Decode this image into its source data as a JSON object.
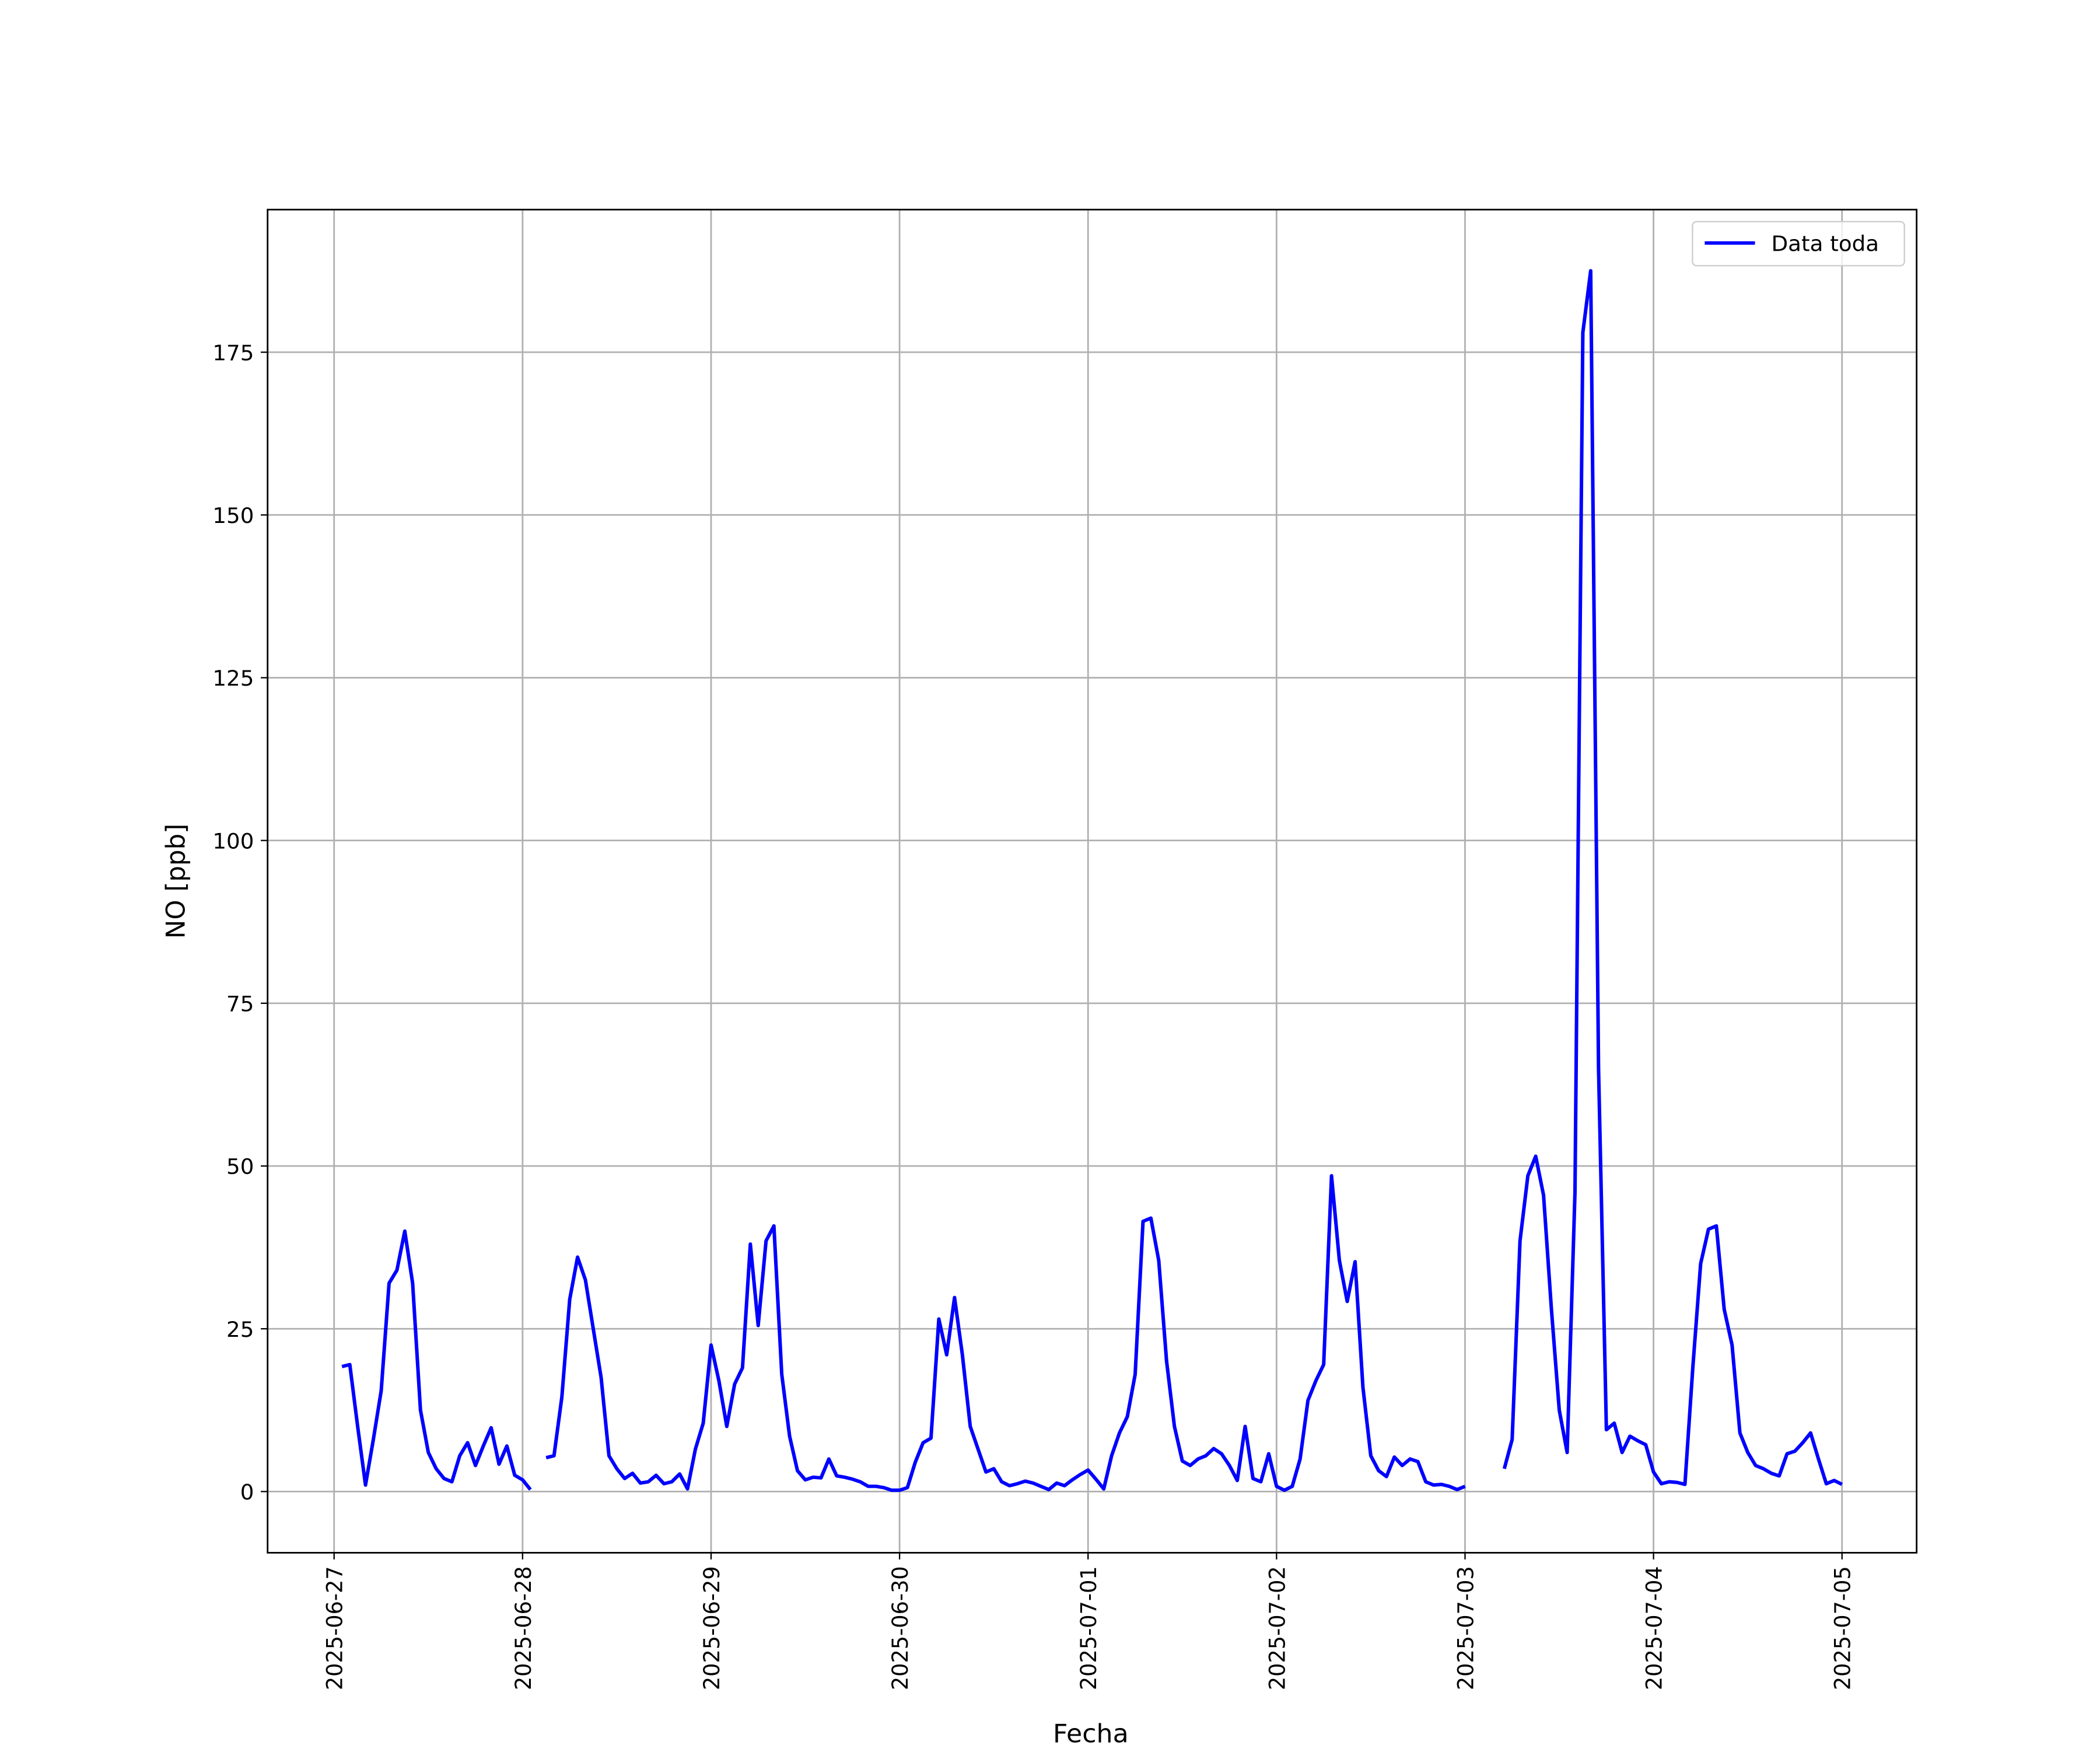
{
  "chart_data": {
    "type": "line",
    "xlabel": "Fecha",
    "ylabel": "NO [ppb]",
    "x": [
      "2025-06-27T01:00",
      "2025-06-27T02:00",
      "2025-06-27T03:00",
      "2025-06-27T04:00",
      "2025-06-27T05:00",
      "2025-06-27T06:00",
      "2025-06-27T07:00",
      "2025-06-27T08:00",
      "2025-06-27T09:00",
      "2025-06-27T10:00",
      "2025-06-27T11:00",
      "2025-06-27T12:00",
      "2025-06-27T13:00",
      "2025-06-27T14:00",
      "2025-06-27T15:00",
      "2025-06-27T16:00",
      "2025-06-27T17:00",
      "2025-06-27T18:00",
      "2025-06-27T19:00",
      "2025-06-27T20:00",
      "2025-06-27T21:00",
      "2025-06-27T22:00",
      "2025-06-27T23:00",
      "2025-06-28T00:00",
      "2025-06-28T01:00",
      "2025-06-28T02:00",
      "2025-06-28T03:00",
      "2025-06-28T04:00",
      "2025-06-28T05:00",
      "2025-06-28T06:00",
      "2025-06-28T07:00",
      "2025-06-28T08:00",
      "2025-06-28T09:00",
      "2025-06-28T10:00",
      "2025-06-28T11:00",
      "2025-06-28T12:00",
      "2025-06-28T13:00",
      "2025-06-28T14:00",
      "2025-06-28T15:00",
      "2025-06-28T16:00",
      "2025-06-28T17:00",
      "2025-06-28T18:00",
      "2025-06-28T19:00",
      "2025-06-28T20:00",
      "2025-06-28T21:00",
      "2025-06-28T22:00",
      "2025-06-28T23:00",
      "2025-06-29T00:00",
      "2025-06-29T01:00",
      "2025-06-29T02:00",
      "2025-06-29T03:00",
      "2025-06-29T04:00",
      "2025-06-29T05:00",
      "2025-06-29T06:00",
      "2025-06-29T07:00",
      "2025-06-29T08:00",
      "2025-06-29T09:00",
      "2025-06-29T10:00",
      "2025-06-29T11:00",
      "2025-06-29T12:00",
      "2025-06-29T13:00",
      "2025-06-29T14:00",
      "2025-06-29T15:00",
      "2025-06-29T16:00",
      "2025-06-29T17:00",
      "2025-06-29T18:00",
      "2025-06-29T19:00",
      "2025-06-29T20:00",
      "2025-06-29T21:00",
      "2025-06-29T22:00",
      "2025-06-29T23:00",
      "2025-06-30T00:00",
      "2025-06-30T01:00",
      "2025-06-30T02:00",
      "2025-06-30T03:00",
      "2025-06-30T04:00",
      "2025-06-30T05:00",
      "2025-06-30T06:00",
      "2025-06-30T07:00",
      "2025-06-30T08:00",
      "2025-06-30T09:00",
      "2025-06-30T10:00",
      "2025-06-30T11:00",
      "2025-06-30T12:00",
      "2025-06-30T13:00",
      "2025-06-30T14:00",
      "2025-06-30T15:00",
      "2025-06-30T16:00",
      "2025-06-30T17:00",
      "2025-06-30T18:00",
      "2025-06-30T19:00",
      "2025-06-30T20:00",
      "2025-06-30T21:00",
      "2025-06-30T22:00",
      "2025-06-30T23:00",
      "2025-07-01T00:00",
      "2025-07-01T01:00",
      "2025-07-01T02:00",
      "2025-07-01T03:00",
      "2025-07-01T04:00",
      "2025-07-01T05:00",
      "2025-07-01T06:00",
      "2025-07-01T07:00",
      "2025-07-01T08:00",
      "2025-07-01T09:00",
      "2025-07-01T10:00",
      "2025-07-01T11:00",
      "2025-07-01T12:00",
      "2025-07-01T13:00",
      "2025-07-01T14:00",
      "2025-07-01T15:00",
      "2025-07-01T16:00",
      "2025-07-01T17:00",
      "2025-07-01T18:00",
      "2025-07-01T19:00",
      "2025-07-01T20:00",
      "2025-07-01T21:00",
      "2025-07-01T22:00",
      "2025-07-01T23:00",
      "2025-07-02T00:00",
      "2025-07-02T01:00",
      "2025-07-02T02:00",
      "2025-07-02T03:00",
      "2025-07-02T04:00",
      "2025-07-02T05:00",
      "2025-07-02T06:00",
      "2025-07-02T07:00",
      "2025-07-02T08:00",
      "2025-07-02T09:00",
      "2025-07-02T10:00",
      "2025-07-02T11:00",
      "2025-07-02T12:00",
      "2025-07-02T13:00",
      "2025-07-02T14:00",
      "2025-07-02T15:00",
      "2025-07-02T16:00",
      "2025-07-02T17:00",
      "2025-07-02T18:00",
      "2025-07-02T19:00",
      "2025-07-02T20:00",
      "2025-07-02T21:00",
      "2025-07-02T22:00",
      "2025-07-02T23:00",
      "2025-07-03T00:00",
      "2025-07-03T01:00",
      "2025-07-03T02:00",
      "2025-07-03T03:00",
      "2025-07-03T04:00",
      "2025-07-03T05:00",
      "2025-07-03T06:00",
      "2025-07-03T07:00",
      "2025-07-03T08:00",
      "2025-07-03T09:00",
      "2025-07-03T10:00",
      "2025-07-03T11:00",
      "2025-07-03T12:00",
      "2025-07-03T13:00",
      "2025-07-03T14:00",
      "2025-07-03T15:00",
      "2025-07-03T16:00",
      "2025-07-03T17:00",
      "2025-07-03T18:00",
      "2025-07-03T19:00",
      "2025-07-03T20:00",
      "2025-07-03T21:00",
      "2025-07-03T22:00",
      "2025-07-03T23:00",
      "2025-07-04T00:00",
      "2025-07-04T01:00",
      "2025-07-04T02:00",
      "2025-07-04T03:00",
      "2025-07-04T04:00",
      "2025-07-04T05:00",
      "2025-07-04T06:00",
      "2025-07-04T07:00",
      "2025-07-04T08:00",
      "2025-07-04T09:00",
      "2025-07-04T10:00",
      "2025-07-04T11:00",
      "2025-07-04T12:00",
      "2025-07-04T13:00",
      "2025-07-04T14:00",
      "2025-07-04T15:00",
      "2025-07-04T16:00",
      "2025-07-04T17:00",
      "2025-07-04T18:00",
      "2025-07-04T19:00",
      "2025-07-04T20:00",
      "2025-07-04T21:00",
      "2025-07-04T22:00",
      "2025-07-04T23:00",
      "2025-07-05T00:00"
    ],
    "series": [
      {
        "name": "Data toda",
        "color": "#0000ff",
        "values": [
          19.2,
          19.5,
          10,
          1,
          8,
          15.5,
          32,
          34,
          40,
          32,
          12.5,
          6,
          3.5,
          2,
          1.5,
          5.5,
          7.5,
          4,
          7,
          9.8,
          4.2,
          7,
          2.5,
          1.8,
          0.3,
          null,
          5.2,
          5.5,
          14.5,
          29.5,
          36,
          32.5,
          25,
          17.5,
          5.5,
          3.5,
          2,
          2.8,
          1.3,
          1.5,
          2.5,
          1.2,
          1.5,
          2.7,
          0.4,
          6.5,
          10.5,
          22.5,
          17,
          10,
          16.5,
          19,
          38,
          25.5,
          38.5,
          40.8,
          18,
          8.5,
          3.2,
          1.8,
          2.2,
          2.1,
          5,
          2.4,
          2.2,
          1.9,
          1.5,
          0.8,
          0.8,
          0.6,
          0.2,
          0.2,
          0.6,
          4.5,
          7.5,
          8.2,
          26.5,
          21,
          29.8,
          21,
          10,
          6.5,
          3,
          3.5,
          1.5,
          0.9,
          1.2,
          1.6,
          1.3,
          0.8,
          0.3,
          1.3,
          0.9,
          1.8,
          2.6,
          3.3,
          1.9,
          0.4,
          5.5,
          9,
          11.5,
          18,
          41.5,
          42,
          35.5,
          20,
          10,
          4.7,
          4,
          5,
          5.5,
          6.6,
          5.8,
          4,
          1.7,
          10,
          2,
          1.5,
          5.8,
          0.8,
          0.2,
          0.8,
          5,
          14,
          17,
          19.5,
          48.5,
          35.5,
          29.2,
          35.3,
          16,
          5.5,
          3.2,
          2.3,
          5.3,
          4,
          5,
          4.6,
          1.5,
          1,
          1.1,
          0.8,
          0.3,
          0.8,
          null,
          null,
          null,
          null,
          3.5,
          8,
          38.5,
          48.5,
          51.5,
          45.5,
          28,
          12.5,
          6,
          46,
          178,
          187.5,
          65,
          9.5,
          10.5,
          6,
          8.5,
          7.8,
          7.2,
          3,
          1.2,
          1.5,
          1.4,
          1.1,
          19,
          35,
          40.3,
          40.8,
          28,
          22.5,
          9,
          6,
          4,
          3.5,
          2.8,
          2.4,
          5.8,
          6.2,
          7.5,
          9,
          5,
          1.2,
          1.7,
          1.1
        ]
      }
    ],
    "xlim": [
      "2025-06-26T15:32",
      "2025-07-05T09:30"
    ],
    "xticks": [
      "2025-06-27",
      "2025-06-28",
      "2025-06-29",
      "2025-06-30",
      "2025-07-01",
      "2025-07-02",
      "2025-07-03",
      "2025-07-04",
      "2025-07-05"
    ],
    "ylim": [
      -9.4,
      196.9
    ],
    "yticks": [
      0,
      25,
      50,
      75,
      100,
      125,
      150,
      175
    ],
    "grid": true,
    "legend": "upper right"
  }
}
